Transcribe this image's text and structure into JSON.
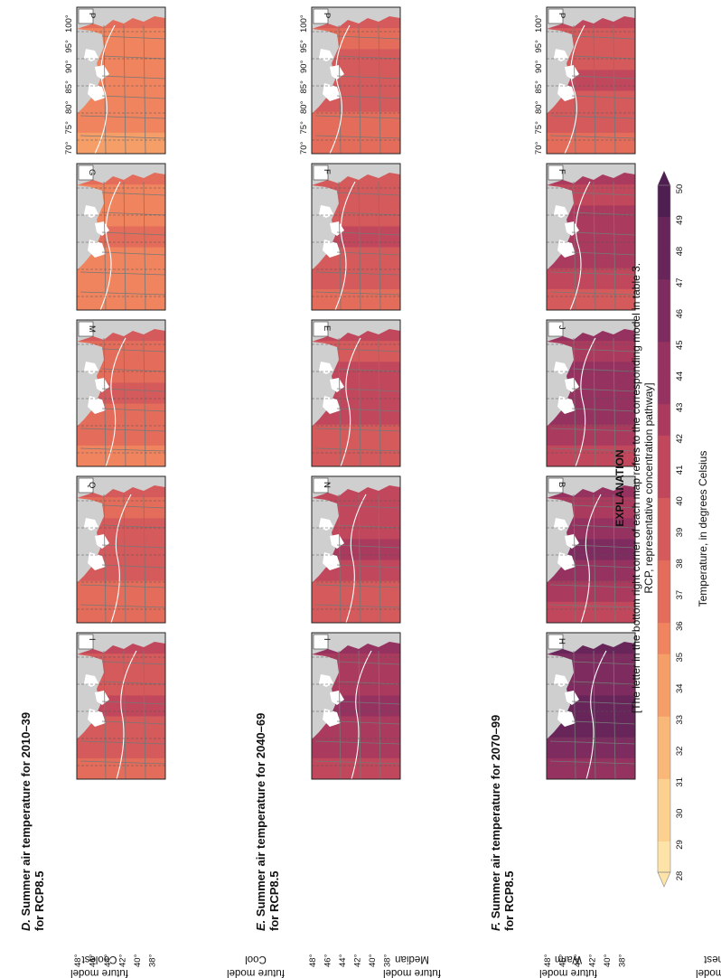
{
  "panels": [
    {
      "letter": "D.",
      "title_line1": "Summer air temperature for 2010–39",
      "title_line2": "for RCP8.5",
      "models": [
        "P",
        "G",
        "M",
        "Q",
        "I"
      ]
    },
    {
      "letter": "E.",
      "title_line1": "Summer air temperature for 2040–69",
      "title_line2": "for RCP8.5",
      "models": [
        "P",
        "F",
        "E",
        "N",
        "I"
      ]
    },
    {
      "letter": "F.",
      "title_line1": "Summer air temperature for 2070–99",
      "title_line2": "for RCP8.5",
      "models": [
        "P",
        "F",
        "J",
        "B",
        "H"
      ]
    }
  ],
  "rows": [
    {
      "line1": "Coolest",
      "line2": "future model"
    },
    {
      "line1": "Cool",
      "line2": "future model"
    },
    {
      "line1": "Median",
      "line2": "future model"
    },
    {
      "line1": "Warm",
      "line2": "future model"
    },
    {
      "line1": "Warmest",
      "line2": "future model"
    }
  ],
  "lon_labels": [
    "100°",
    "95°",
    "90°",
    "85°",
    "80°",
    "75°",
    "70°"
  ],
  "lat_labels": [
    "48°",
    "46°",
    "44°",
    "42°",
    "40°",
    "38°"
  ],
  "map_shading": {
    "D": [
      [
        0.38,
        0.3,
        0.34,
        0.36,
        0.32,
        0.3,
        0.28
      ],
      [
        0.4,
        0.33,
        0.36,
        0.38,
        0.34,
        0.32,
        0.3
      ],
      [
        0.48,
        0.4,
        0.44,
        0.46,
        0.42,
        0.38,
        0.34
      ],
      [
        0.52,
        0.44,
        0.48,
        0.5,
        0.46,
        0.42,
        0.38
      ],
      [
        0.58,
        0.5,
        0.54,
        0.58,
        0.54,
        0.48,
        0.44
      ]
    ],
    "E": [
      [
        0.5,
        0.42,
        0.46,
        0.5,
        0.46,
        0.42,
        0.38
      ],
      [
        0.54,
        0.46,
        0.52,
        0.56,
        0.52,
        0.46,
        0.42
      ],
      [
        0.6,
        0.52,
        0.58,
        0.62,
        0.58,
        0.52,
        0.46
      ],
      [
        0.62,
        0.56,
        0.6,
        0.64,
        0.6,
        0.54,
        0.5
      ],
      [
        0.72,
        0.64,
        0.7,
        0.74,
        0.7,
        0.64,
        0.58
      ]
    ],
    "F": [
      [
        0.56,
        0.48,
        0.52,
        0.58,
        0.54,
        0.48,
        0.44
      ],
      [
        0.66,
        0.58,
        0.64,
        0.7,
        0.66,
        0.58,
        0.54
      ],
      [
        0.74,
        0.66,
        0.72,
        0.78,
        0.74,
        0.66,
        0.6
      ],
      [
        0.76,
        0.68,
        0.74,
        0.8,
        0.76,
        0.68,
        0.62
      ],
      [
        0.88,
        0.82,
        0.86,
        0.92,
        0.88,
        0.82,
        0.76
      ]
    ]
  },
  "explanation": {
    "title": "EXPLANATION",
    "note_line1": "[The letter in the bottom right corner of each map refers to the corresponding model in table 3.",
    "note_line2": "RCP, representative concentration pathway]",
    "scale_label": "Temperature, in degrees Celsius",
    "scale_values": [
      "28",
      "29",
      "30",
      "31",
      "32",
      "33",
      "34",
      "35",
      "36",
      "37",
      "38",
      "39",
      "40",
      "41",
      "42",
      "43",
      "44",
      "45",
      "46",
      "47",
      "48",
      "49",
      "50"
    ],
    "colors": [
      "#fde3a7",
      "#fcd08e",
      "#f9b778",
      "#f59e68",
      "#ef845e",
      "#e36d5a",
      "#d45a5b",
      "#c1485c",
      "#ab3b5e",
      "#953260",
      "#7e2b5f",
      "#67255a",
      "#4f1f52"
    ]
  }
}
